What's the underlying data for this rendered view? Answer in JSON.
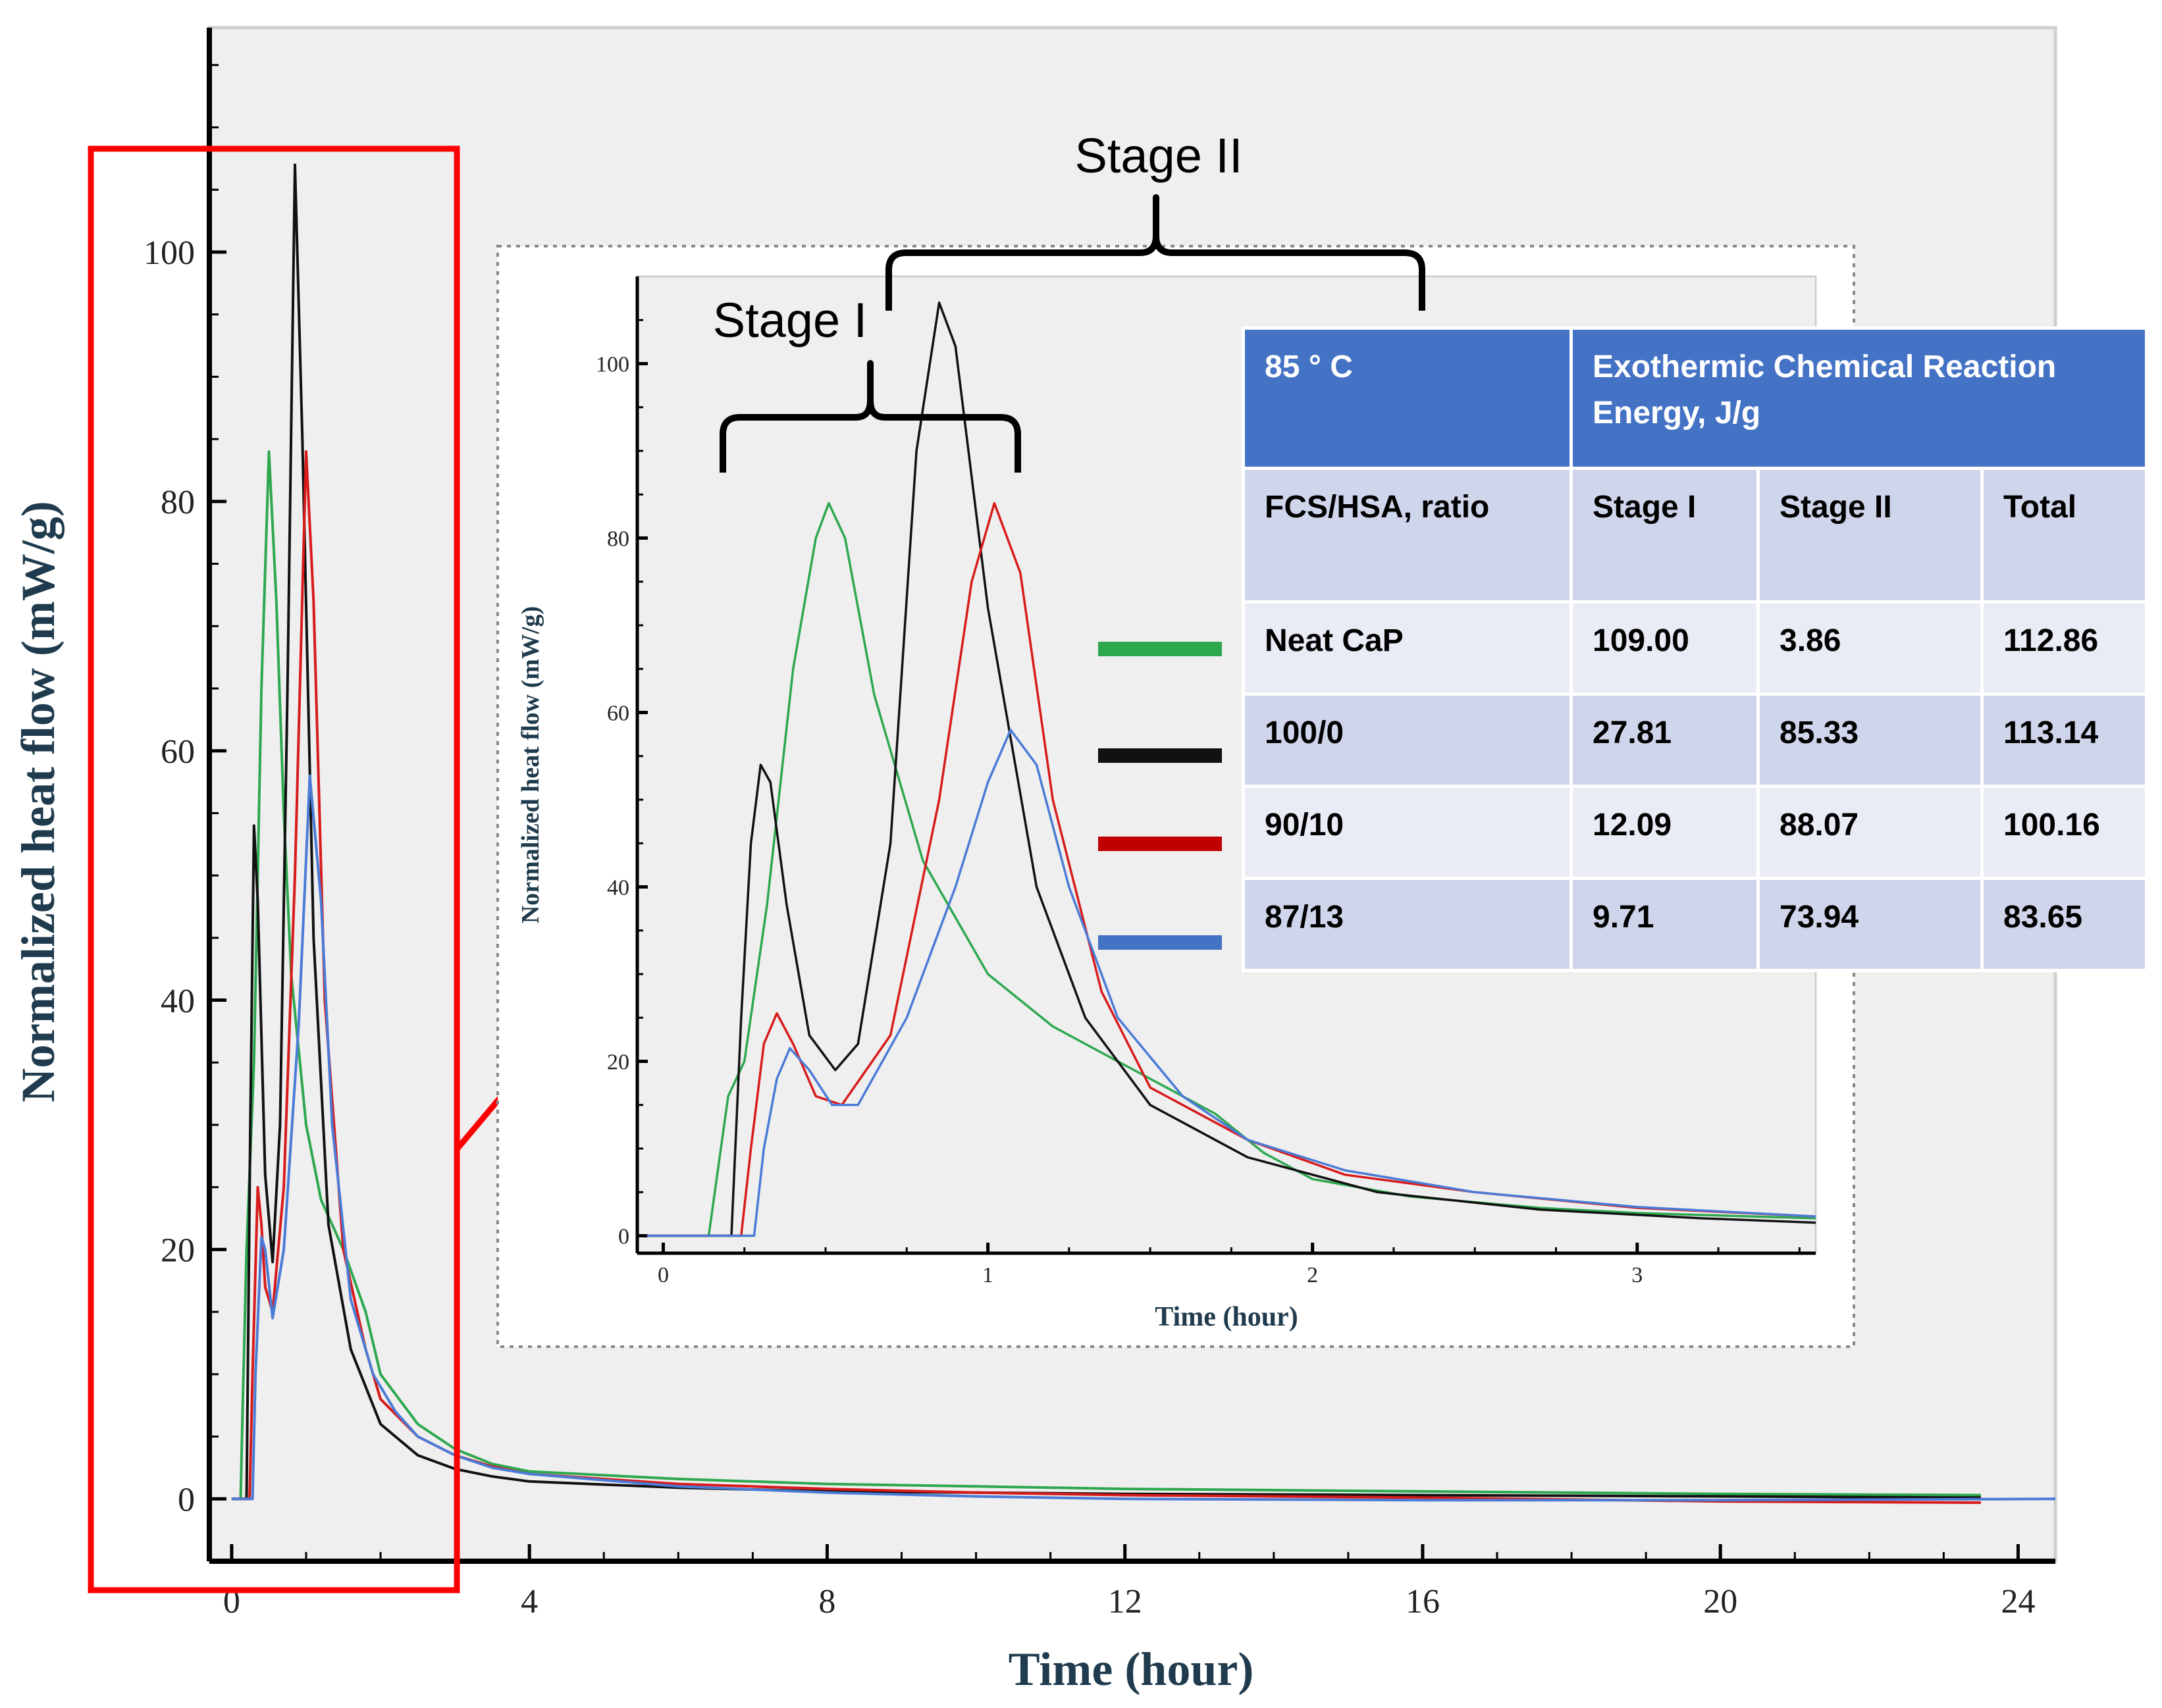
{
  "chart_data": [
    {
      "id": "main",
      "type": "line",
      "title": "",
      "xlabel": "Time (hour)",
      "ylabel": "Normalized heat flow (mW/g)",
      "xlim": [
        -0.3,
        24.5
      ],
      "ylim": [
        -5,
        118
      ],
      "xticks": [
        0,
        4,
        8,
        12,
        16,
        20,
        24
      ],
      "yticks": [
        0,
        20,
        40,
        60,
        80,
        100
      ],
      "series": [
        {
          "name": "Neat CaP",
          "color": "#2ea84f",
          "x": [
            0,
            0.12,
            0.15,
            0.2,
            0.3,
            0.4,
            0.5,
            0.6,
            0.7,
            0.8,
            1.0,
            1.2,
            1.5,
            1.8,
            2.0,
            2.5,
            3.0,
            3.5,
            4.0,
            6,
            8,
            10,
            12,
            16,
            20,
            23.5
          ],
          "y": [
            0,
            0,
            8,
            20,
            35,
            65,
            84,
            72,
            55,
            42,
            30,
            24,
            20,
            15,
            10,
            6,
            4,
            2.8,
            2.2,
            1.6,
            1.2,
            1.0,
            0.8,
            0.6,
            0.4,
            0.3
          ]
        },
        {
          "name": "100/0",
          "color": "#111111",
          "x": [
            0,
            0.2,
            0.25,
            0.3,
            0.35,
            0.45,
            0.55,
            0.65,
            0.75,
            0.85,
            0.95,
            1.1,
            1.3,
            1.6,
            2.0,
            2.5,
            3.0,
            3.5,
            4.0,
            6,
            8,
            10,
            12,
            16,
            20,
            23.5
          ],
          "y": [
            0,
            0,
            30,
            54,
            48,
            26,
            19,
            30,
            65,
            107,
            85,
            45,
            22,
            12,
            6,
            3.5,
            2.4,
            1.8,
            1.4,
            0.9,
            0.6,
            0.5,
            0.4,
            0.3,
            0.2,
            0.1
          ]
        },
        {
          "name": "90/10",
          "color": "#d81b1b",
          "x": [
            0,
            0.24,
            0.28,
            0.35,
            0.4,
            0.45,
            0.55,
            0.7,
            0.85,
            1.0,
            1.1,
            1.25,
            1.5,
            1.8,
            2.0,
            2.5,
            3.0,
            3.5,
            4.0,
            6,
            8,
            10,
            12,
            16,
            20,
            23.5
          ],
          "y": [
            0,
            0,
            10,
            25,
            22,
            17,
            15,
            25,
            50,
            84,
            72,
            40,
            20,
            12,
            8,
            5,
            3.5,
            2.6,
            2.0,
            1.2,
            0.8,
            0.5,
            0.3,
            0.1,
            -0.2,
            -0.3
          ]
        },
        {
          "name": "87/13",
          "color": "#4b7bd6",
          "x": [
            0,
            0.28,
            0.32,
            0.4,
            0.45,
            0.55,
            0.7,
            0.9,
            1.05,
            1.2,
            1.35,
            1.6,
            1.9,
            2.2,
            2.5,
            3.0,
            3.5,
            4.0,
            6,
            8,
            10,
            12,
            16,
            20,
            24.5
          ],
          "y": [
            0,
            0,
            10,
            21,
            20,
            14.5,
            20,
            38,
            58,
            48,
            30,
            16,
            10,
            7,
            5,
            3.5,
            2.5,
            2.0,
            1.0,
            0.5,
            0.2,
            0.0,
            -0.1,
            -0.1,
            0.0
          ]
        }
      ]
    },
    {
      "id": "inset",
      "type": "line",
      "title": "",
      "xlabel": "Time (hour)",
      "ylabel": "Normalized heat flow (mW/g)",
      "xlim": [
        -0.08,
        3.55
      ],
      "ylim": [
        -2,
        110
      ],
      "xticks": [
        0,
        1,
        2,
        3
      ],
      "yticks": [
        0,
        20,
        40,
        60,
        80,
        100
      ],
      "series": [
        {
          "name": "Neat CaP",
          "color": "#2ea84f",
          "x": [
            -0.05,
            0.14,
            0.17,
            0.2,
            0.25,
            0.32,
            0.4,
            0.47,
            0.51,
            0.56,
            0.65,
            0.8,
            1.0,
            1.2,
            1.5,
            1.7,
            1.85,
            2.0,
            2.3,
            2.7,
            3.0,
            3.55
          ],
          "y": [
            0,
            0,
            8,
            16,
            20,
            38,
            65,
            80,
            84,
            80,
            62,
            43,
            30,
            24,
            18,
            14,
            9.5,
            6.5,
            4.5,
            3.2,
            2.6,
            2.0
          ]
        },
        {
          "name": "100/0",
          "color": "#111111",
          "x": [
            -0.05,
            0.21,
            0.24,
            0.27,
            0.3,
            0.33,
            0.38,
            0.45,
            0.53,
            0.6,
            0.7,
            0.78,
            0.85,
            0.9,
            1.0,
            1.15,
            1.3,
            1.5,
            1.8,
            2.2,
            2.7,
            3.2,
            3.55
          ],
          "y": [
            0,
            0,
            25,
            45,
            54,
            52,
            38,
            23,
            19,
            22,
            45,
            90,
            107,
            102,
            72,
            40,
            25,
            15,
            9,
            5,
            3,
            2,
            1.5
          ]
        },
        {
          "name": "90/10",
          "color": "#d81b1b",
          "x": [
            -0.05,
            0.24,
            0.27,
            0.31,
            0.35,
            0.4,
            0.47,
            0.55,
            0.7,
            0.85,
            0.95,
            1.02,
            1.1,
            1.2,
            1.35,
            1.5,
            1.8,
            2.1,
            2.5,
            3.0,
            3.55
          ],
          "y": [
            0,
            0,
            10,
            22,
            25.5,
            22,
            16,
            15,
            23,
            50,
            75,
            84,
            76,
            50,
            28,
            17,
            11,
            7,
            5,
            3.2,
            2.2
          ]
        },
        {
          "name": "87/13",
          "color": "#4b7bd6",
          "x": [
            -0.05,
            0.28,
            0.31,
            0.35,
            0.39,
            0.45,
            0.52,
            0.6,
            0.75,
            0.9,
            1.0,
            1.07,
            1.15,
            1.25,
            1.4,
            1.6,
            1.8,
            2.1,
            2.5,
            3.0,
            3.55
          ],
          "y": [
            0,
            0,
            10,
            18,
            21.5,
            19,
            15,
            15,
            25,
            40,
            52,
            58,
            54,
            40,
            25,
            16,
            11,
            7.5,
            5,
            3.3,
            2.2
          ]
        }
      ]
    }
  ],
  "annotations": {
    "stage_1": "Stage I",
    "stage_2": "Stage II"
  },
  "table": {
    "temperature_header": "85 ° C",
    "energy_header": "Exothermic Chemical Reaction Energy,  J/g",
    "columns": [
      "FCS/HSA, ratio",
      "Stage I",
      "Stage II",
      "Total"
    ],
    "rows": [
      {
        "ratio": "Neat CaP",
        "stage_1": "109.00",
        "stage_2": "3.86",
        "total": "112.86",
        "legend_color": "#2ea84f"
      },
      {
        "ratio": "100/0",
        "stage_1": "27.81",
        "stage_2": "85.33",
        "total": "113.14",
        "legend_color": "#111111"
      },
      {
        "ratio": "90/10",
        "stage_1": "12.09",
        "stage_2": "88.07",
        "total": "100.16",
        "legend_color": "#c00000"
      },
      {
        "ratio": "87/13",
        "stage_1": "9.71",
        "stage_2": "73.94",
        "total": "83.65",
        "legend_color": "#4472c4"
      }
    ]
  },
  "colors": {
    "highlight": "#ff0000",
    "axis_title": "#1f3b4d",
    "plot_background": "#efefef",
    "table_header": "#4472c4"
  }
}
